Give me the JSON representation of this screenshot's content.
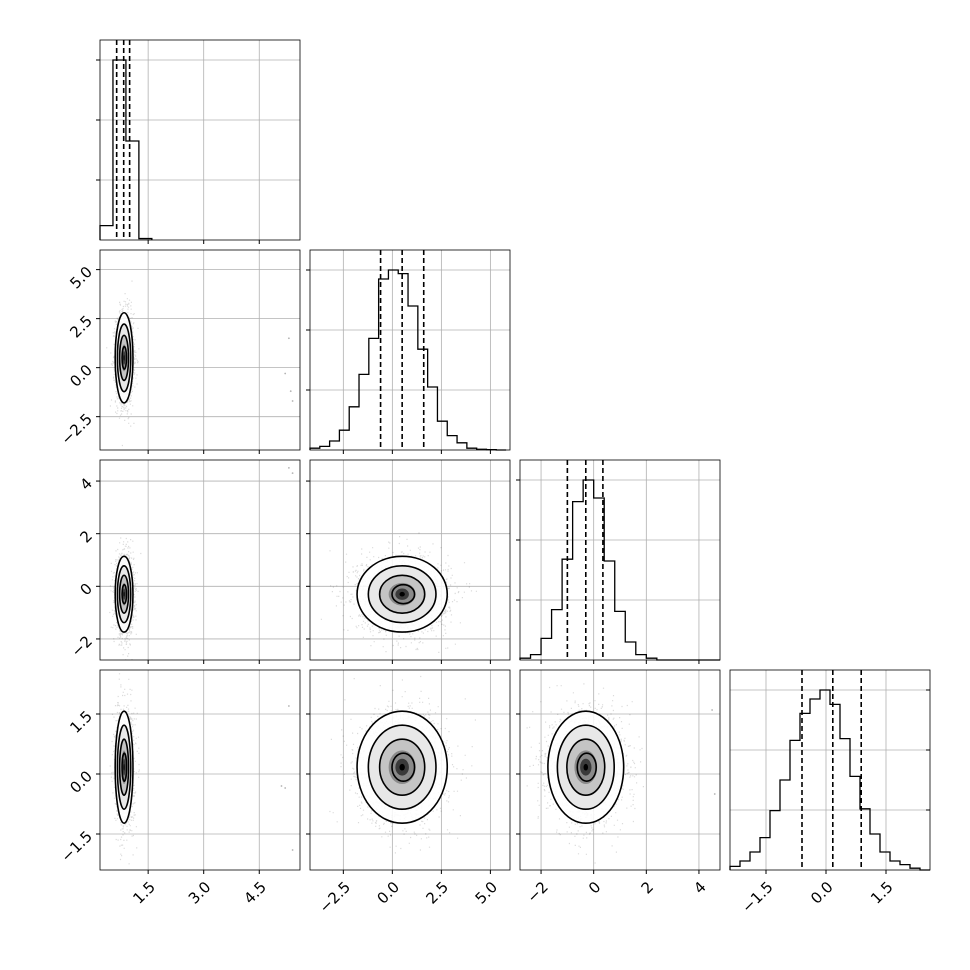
{
  "figure": {
    "type": "corner_plot",
    "description_colors": {
      "axes": "#000000",
      "grid": "#b0b0b0",
      "hist": "#000000",
      "points": "#000000"
    }
  },
  "chart_data": {
    "type": "corner",
    "n_params": 4,
    "grid": true,
    "quantile_style": "dashed",
    "params": [
      {
        "id": "p0",
        "range": [
          0.2,
          5.6
        ],
        "ticks": [
          1.5,
          3.0,
          4.5
        ],
        "tick_labels": [
          "1.5",
          "3.0",
          "4.5"
        ],
        "quantiles": [
          0.65,
          0.84,
          1.0
        ],
        "hist": {
          "edges": [
            0.2,
            0.55,
            0.9,
            1.25,
            1.6
          ],
          "counts": [
            0.08,
            1.0,
            0.55,
            0.008
          ]
        }
      },
      {
        "id": "p1",
        "range": [
          -4.2,
          6.0
        ],
        "ticks": [
          -2.5,
          0.0,
          2.5,
          5.0
        ],
        "tick_labels": [
          "−2.5",
          "0.0",
          "2.5",
          "5.0"
        ],
        "quantiles": [
          -0.6,
          0.5,
          1.6
        ],
        "hist": {
          "edges": [
            -4.2,
            -3.7,
            -3.2,
            -2.7,
            -2.2,
            -1.7,
            -1.2,
            -0.7,
            -0.2,
            0.3,
            0.8,
            1.3,
            1.8,
            2.3,
            2.8,
            3.3,
            3.8,
            4.3,
            4.8,
            5.3,
            5.8
          ],
          "counts": [
            0.01,
            0.02,
            0.05,
            0.11,
            0.24,
            0.42,
            0.62,
            0.95,
            1.0,
            0.98,
            0.8,
            0.56,
            0.35,
            0.16,
            0.08,
            0.04,
            0.01,
            0.004,
            0.002,
            0.0
          ]
        }
      },
      {
        "id": "p2",
        "range": [
          -2.8,
          4.8
        ],
        "ticks": [
          -2,
          0,
          2,
          4
        ],
        "tick_labels": [
          "−2",
          "0",
          "2",
          "4"
        ],
        "quantiles": [
          -1.0,
          -0.3,
          0.35
        ],
        "hist": {
          "edges": [
            -2.8,
            -2.4,
            -2.0,
            -1.6,
            -1.2,
            -0.8,
            -0.4,
            0.0,
            0.4,
            0.8,
            1.2,
            1.6,
            2.0,
            2.4,
            2.8,
            3.2,
            3.6,
            4.0,
            4.4,
            4.8
          ],
          "counts": [
            0.01,
            0.03,
            0.12,
            0.28,
            0.56,
            0.88,
            1.0,
            0.9,
            0.55,
            0.27,
            0.1,
            0.03,
            0.01,
            0.0,
            0.0,
            0.0,
            0.0,
            0.0,
            0.0
          ]
        }
      },
      {
        "id": "p3",
        "range": [
          -2.4,
          2.6
        ],
        "ticks": [
          -1.5,
          0.0,
          1.5
        ],
        "tick_labels": [
          "−1.5",
          "0.0",
          "1.5"
        ],
        "quantiles": [
          -0.6,
          0.17,
          0.88
        ],
        "hist": {
          "edges": [
            -2.4,
            -2.15,
            -1.9,
            -1.65,
            -1.4,
            -1.15,
            -0.9,
            -0.65,
            -0.4,
            -0.15,
            0.1,
            0.35,
            0.6,
            0.85,
            1.1,
            1.35,
            1.6,
            1.85,
            2.1,
            2.35,
            2.6
          ],
          "counts": [
            0.02,
            0.05,
            0.1,
            0.18,
            0.33,
            0.5,
            0.72,
            0.87,
            0.95,
            1.0,
            0.92,
            0.73,
            0.52,
            0.34,
            0.2,
            0.1,
            0.05,
            0.03,
            0.01,
            0.0
          ]
        }
      }
    ],
    "pairs": [
      {
        "x": 0,
        "y": 1,
        "mean": [
          0.85,
          0.5
        ],
        "sd": [
          0.12,
          1.15
        ],
        "rho": 0.0,
        "outliers": [
          [
            5.3,
            1.5
          ],
          [
            5.2,
            -0.3
          ],
          [
            5.4,
            -1.7
          ],
          [
            5.35,
            -1.2
          ]
        ]
      },
      {
        "x": 0,
        "y": 2,
        "mean": [
          0.85,
          -0.3
        ],
        "sd": [
          0.12,
          0.72
        ],
        "rho": 0.0,
        "outliers": [
          [
            5.3,
            4.5
          ],
          [
            5.4,
            4.3
          ]
        ]
      },
      {
        "x": 1,
        "y": 2,
        "mean": [
          0.5,
          -0.3
        ],
        "sd": [
          1.15,
          0.72
        ],
        "rho": -0.05,
        "outliers": []
      },
      {
        "x": 0,
        "y": 3,
        "mean": [
          0.85,
          0.17
        ],
        "sd": [
          0.12,
          0.7
        ],
        "rho": 0.0,
        "outliers": [
          [
            5.3,
            1.7
          ],
          [
            5.1,
            -0.3
          ],
          [
            5.2,
            -0.35
          ],
          [
            5.4,
            -1.9
          ]
        ]
      },
      {
        "x": 1,
        "y": 3,
        "mean": [
          0.5,
          0.17
        ],
        "sd": [
          1.15,
          0.7
        ],
        "rho": 0.0,
        "outliers": []
      },
      {
        "x": 2,
        "y": 3,
        "mean": [
          -0.3,
          0.17
        ],
        "sd": [
          0.72,
          0.7
        ],
        "rho": 0.0,
        "outliers": [
          [
            4.5,
            1.6
          ],
          [
            4.6,
            -0.5
          ]
        ]
      }
    ]
  }
}
